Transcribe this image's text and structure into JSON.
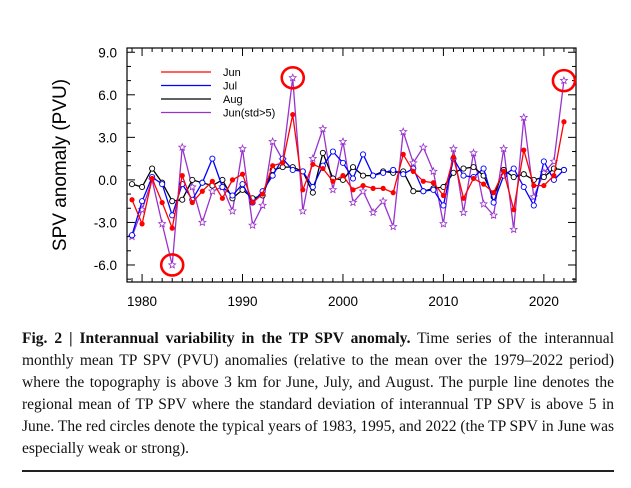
{
  "chart_data": {
    "type": "line",
    "title": "",
    "xlabel": "",
    "ylabel": "SPV anomaly (PVU)",
    "xlim": [
      1978.5,
      2023.2
    ],
    "ylim": [
      -7.2,
      9.3
    ],
    "x_ticks": [
      1980,
      1990,
      2000,
      2010,
      2020
    ],
    "y_ticks": [
      -6.0,
      -3.0,
      0.0,
      3.0,
      6.0,
      9.0
    ],
    "y_tick_labels": [
      "-6.0",
      "-3.0",
      "0.0",
      "3.0",
      "6.0",
      "9.0"
    ],
    "legend_position": "top-left",
    "x": [
      1979,
      1980,
      1981,
      1982,
      1983,
      1984,
      1985,
      1986,
      1987,
      1988,
      1989,
      1990,
      1991,
      1992,
      1993,
      1994,
      1995,
      1996,
      1997,
      1998,
      1999,
      2000,
      2001,
      2002,
      2003,
      2004,
      2005,
      2006,
      2007,
      2008,
      2009,
      2010,
      2011,
      2012,
      2013,
      2014,
      2015,
      2016,
      2017,
      2018,
      2019,
      2020,
      2021,
      2022
    ],
    "series": [
      {
        "name": "Jun",
        "color": "#ff0000",
        "marker": "filled-circle",
        "values": [
          -1.4,
          -3.1,
          0.1,
          -1.6,
          -3.4,
          0.3,
          -1.6,
          -0.8,
          -0.1,
          -1.3,
          0.0,
          0.4,
          -1.6,
          -1.0,
          1.0,
          1.2,
          4.6,
          -0.7,
          1.1,
          0.8,
          -0.1,
          0.3,
          -0.7,
          -0.4,
          -0.6,
          -0.6,
          -0.9,
          1.8,
          0.6,
          -0.1,
          -0.2,
          -1.1,
          1.6,
          -1.3,
          0.1,
          -0.3,
          -0.9,
          0.6,
          -2.1,
          2.1,
          -0.4,
          -0.4,
          0.3,
          4.1
        ]
      },
      {
        "name": "Jul",
        "color": "#0000ff",
        "marker": "open-circle",
        "values": [
          -3.9,
          -1.5,
          0.2,
          -0.3,
          -2.5,
          -0.3,
          -1.4,
          -0.2,
          1.5,
          -0.5,
          -1.1,
          -0.3,
          -1.6,
          -0.8,
          0.3,
          1.5,
          0.7,
          0.6,
          -0.5,
          1.0,
          2.0,
          1.2,
          0.1,
          1.8,
          0.3,
          0.5,
          0.7,
          0.4,
          0.8,
          -0.8,
          -0.7,
          -1.8,
          1.5,
          0.3,
          0.2,
          0.8,
          -1.6,
          0.3,
          0.8,
          -0.5,
          -1.8,
          1.3,
          0.0,
          0.7
        ]
      },
      {
        "name": "Aug",
        "color": "#000000",
        "marker": "open-circle",
        "values": [
          -0.3,
          -0.5,
          0.8,
          -0.2,
          -1.5,
          -1.4,
          0.0,
          -0.2,
          -0.4,
          0.0,
          -1.3,
          -0.7,
          -1.3,
          -1.1,
          0.7,
          0.9,
          0.9,
          0.6,
          -0.9,
          1.9,
          0.1,
          0.0,
          0.9,
          0.3,
          0.3,
          0.6,
          0.5,
          0.6,
          -0.8,
          -0.8,
          -0.6,
          -0.5,
          0.5,
          0.8,
          0.9,
          0.3,
          -1.2,
          0.7,
          0.2,
          0.4,
          0.0,
          0.2,
          0.8,
          0.7
        ]
      },
      {
        "name": "Jun(std>5)",
        "color": "#9932cc",
        "marker": "open-star",
        "values": [
          -4.0,
          -2.1,
          0.0,
          -3.1,
          -6.0,
          2.3,
          -0.5,
          -3.0,
          -0.8,
          -0.5,
          -2.2,
          2.2,
          -3.2,
          -1.8,
          2.7,
          1.4,
          7.2,
          -2.2,
          1.5,
          3.6,
          -0.7,
          2.7,
          -1.6,
          -0.8,
          -2.3,
          -1.5,
          -3.3,
          3.4,
          1.2,
          2.3,
          0.6,
          -3.1,
          2.2,
          -2.3,
          1.9,
          -1.7,
          -2.5,
          2.2,
          -3.5,
          4.4,
          -1.2,
          0.5,
          1.3,
          7.0
        ]
      }
    ],
    "highlighted_years": [
      1983,
      1995,
      2022
    ],
    "highlight_color": "#ff0000"
  },
  "caption": {
    "label": "Fig. 2 | Interannual variability in the TP SPV anomaly.",
    "text": " Time series of the interannual monthly mean TP SPV (PVU) anomalies (relative to the mean over the 1979–2022 period) where the topography is above 3 km for June, July, and August. The purple line denotes the regional mean of TP SPV where the standard deviation of interannual TP SPV is above 5 in June. The red circles denote the typical years of 1983, 1995, and 2022 (the TP SPV in June was especially weak or strong)."
  }
}
